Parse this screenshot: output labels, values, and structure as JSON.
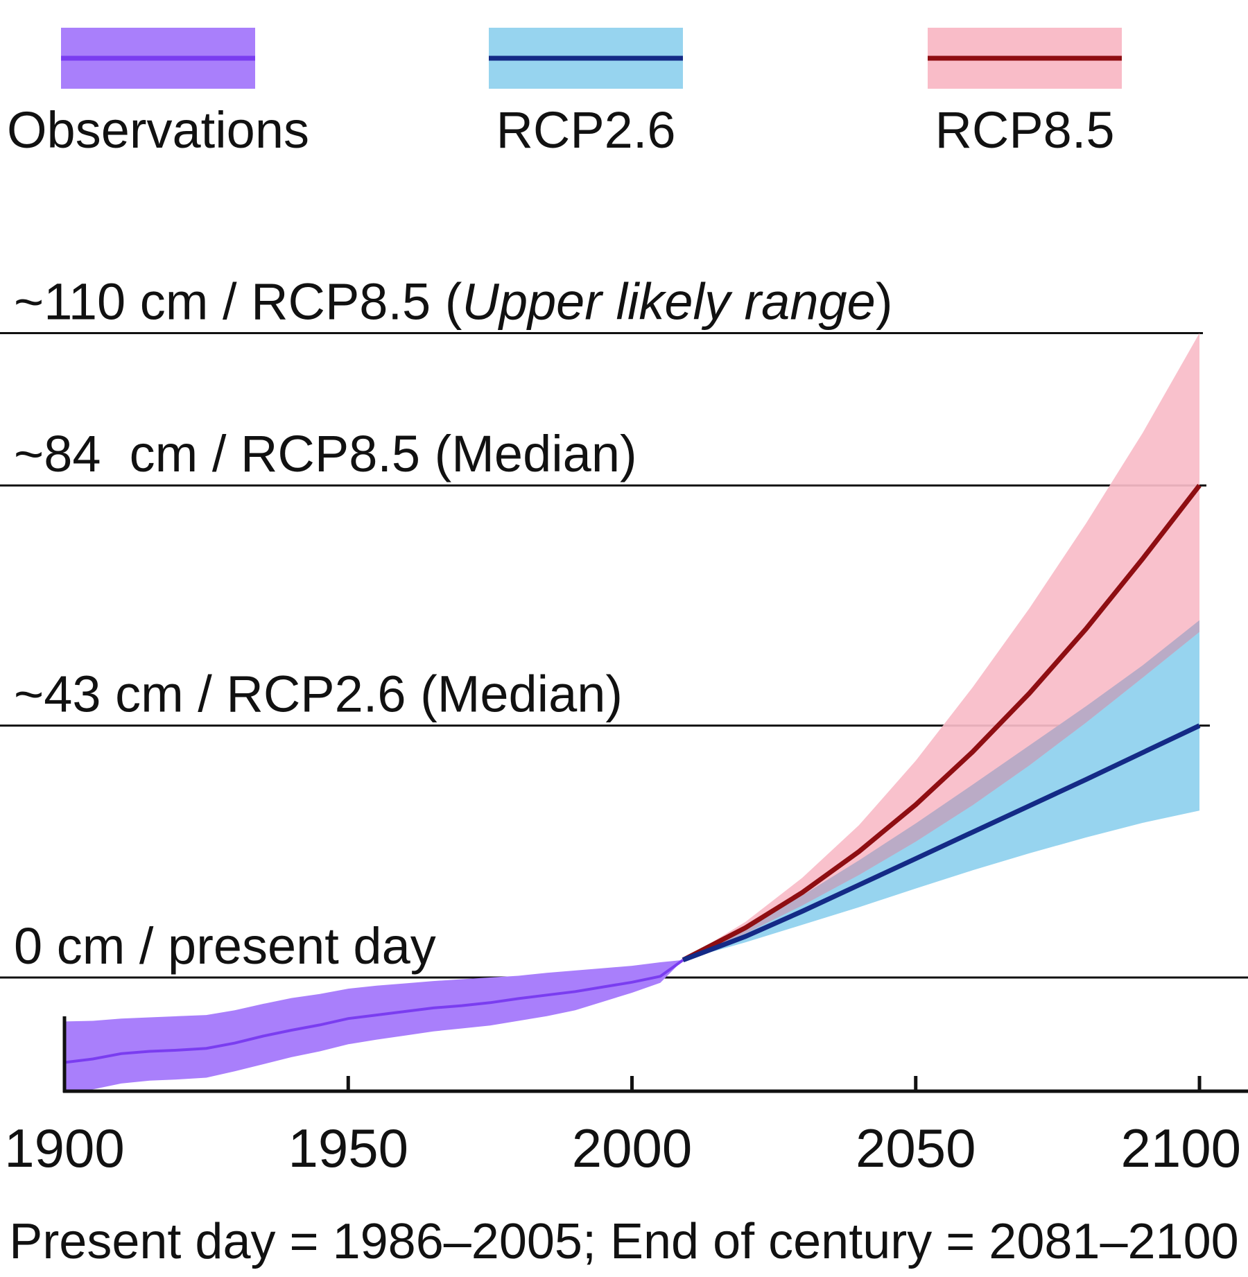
{
  "chart_data": {
    "type": "line",
    "title": "",
    "xlabel": "",
    "ylabel": "",
    "xlim": [
      1900,
      2100
    ],
    "ylim": [
      -25,
      120
    ],
    "xticks": [
      "1900",
      "1950",
      "2000",
      "2050",
      "2100"
    ],
    "caption": "Present day = 1986–2005; End of century = 2081–2100",
    "legend": {
      "placement": "top",
      "entries": [
        {
          "name": "Observations",
          "line_color": "#7a3df0",
          "band_color": "#a97ffb"
        },
        {
          "name": "RCP2.6",
          "line_color": "#142a86",
          "band_color": "#97d4ef"
        },
        {
          "name": "RCP8.5",
          "line_color": "#8e0e12",
          "band_color": "#f9bcc8"
        }
      ]
    },
    "reference_lines": [
      {
        "value": 110,
        "label_prefix": "~110 cm / RCP8.5 (",
        "label_italic": "Upper likely range",
        "label_suffix": ")"
      },
      {
        "value": 84,
        "label": "~84  cm / RCP8.5 (Median)"
      },
      {
        "value": 43,
        "label": "~43 cm / RCP2.6 (Median)"
      },
      {
        "value": 0,
        "label": "0 cm / present day"
      }
    ],
    "series": [
      {
        "name": "Observations",
        "x": [
          1900,
          1905,
          1910,
          1915,
          1920,
          1925,
          1930,
          1935,
          1940,
          1945,
          1950,
          1955,
          1960,
          1965,
          1970,
          1975,
          1980,
          1985,
          1990,
          1995,
          2000,
          2005,
          2009
        ],
        "values": [
          -14.5,
          -13.9,
          -13.0,
          -12.6,
          -12.4,
          -12.1,
          -11.2,
          -10.0,
          -9.0,
          -8.1,
          -7.0,
          -6.4,
          -5.8,
          -5.2,
          -4.8,
          -4.3,
          -3.6,
          -3.0,
          -2.4,
          -1.6,
          -0.8,
          0.2,
          3.0
        ],
        "lower": [
          -19.5,
          -19.1,
          -18.1,
          -17.6,
          -17.4,
          -17.1,
          -16.0,
          -14.8,
          -13.6,
          -12.6,
          -11.4,
          -10.6,
          -9.9,
          -9.2,
          -8.7,
          -8.2,
          -7.4,
          -6.6,
          -5.6,
          -4.1,
          -2.6,
          -0.9,
          3.0
        ],
        "upper": [
          -7.5,
          -7.4,
          -7.0,
          -6.8,
          -6.6,
          -6.4,
          -5.6,
          -4.5,
          -3.5,
          -2.8,
          -1.9,
          -1.4,
          -1.0,
          -0.6,
          -0.3,
          0.0,
          0.3,
          0.8,
          1.2,
          1.6,
          2.0,
          2.6,
          3.0
        ]
      },
      {
        "name": "RCP2.6",
        "x": [
          2009,
          2020,
          2030,
          2040,
          2050,
          2060,
          2070,
          2080,
          2090,
          2100
        ],
        "values": [
          3.0,
          7.0,
          11.3,
          15.8,
          20.3,
          24.8,
          29.3,
          33.8,
          38.4,
          43.0
        ],
        "lower": [
          3.0,
          6.0,
          9.0,
          12.0,
          15.2,
          18.3,
          21.2,
          23.9,
          26.4,
          28.5
        ],
        "upper": [
          3.0,
          8.5,
          14.0,
          20.0,
          26.3,
          32.9,
          39.6,
          46.3,
          53.3,
          61.0
        ]
      },
      {
        "name": "RCP8.5",
        "x": [
          2009,
          2020,
          2030,
          2040,
          2050,
          2060,
          2070,
          2080,
          2090,
          2100
        ],
        "values": [
          3.0,
          8.5,
          14.5,
          21.5,
          29.5,
          38.5,
          48.5,
          59.5,
          71.5,
          84.0
        ],
        "lower": [
          3.0,
          7.5,
          12.3,
          17.5,
          23.2,
          29.4,
          36.2,
          43.5,
          51.2,
          59.0
        ],
        "upper": [
          3.0,
          9.5,
          17.0,
          26.0,
          37.0,
          49.5,
          63.0,
          77.5,
          93.0,
          110.0
        ]
      }
    ]
  }
}
